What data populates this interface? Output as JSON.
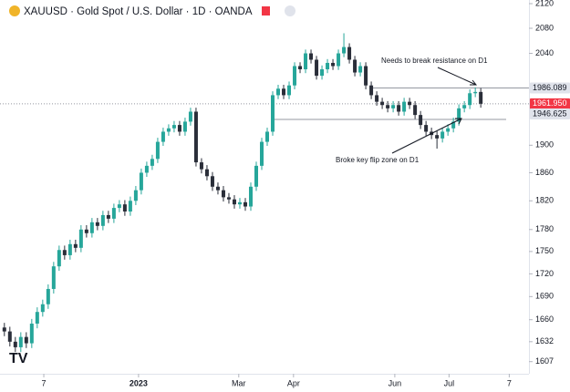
{
  "chart_data": {
    "type": "candlestick",
    "title": "XAUUSD · Gold Spot / U.S. Dollar · 1D · OANDA",
    "up_color": "#26a69a",
    "down_color": "#2a2e39",
    "open": [
      1650,
      1645,
      1632,
      1625,
      1638,
      1630,
      1655,
      1670,
      1680,
      1700,
      1730,
      1752,
      1745,
      1760,
      1755,
      1780,
      1775,
      1790,
      1785,
      1800,
      1795,
      1810,
      1815,
      1805,
      1820,
      1835,
      1860,
      1870,
      1880,
      1905,
      1920,
      1925,
      1930,
      1920,
      1935,
      1950,
      1875,
      1865,
      1855,
      1840,
      1835,
      1825,
      1822,
      1815,
      1818,
      1812,
      1840,
      1870,
      1905,
      1920,
      1975,
      1985,
      1975,
      1990,
      2020,
      2015,
      2040,
      2030,
      2005,
      2015,
      2025,
      2020,
      2040,
      2050,
      2030,
      2010,
      2020,
      1990,
      1975,
      1965,
      1960,
      1955,
      1960,
      1950,
      1965,
      1960,
      1945,
      1930,
      1920,
      1915,
      1910,
      1920,
      1925,
      1935,
      1955,
      1960,
      1978,
      1980
    ],
    "high": [
      1656,
      1651,
      1638,
      1644,
      1644,
      1661,
      1676,
      1686,
      1706,
      1736,
      1758,
      1758,
      1766,
      1766,
      1786,
      1786,
      1796,
      1796,
      1806,
      1806,
      1816,
      1821,
      1821,
      1826,
      1841,
      1866,
      1876,
      1886,
      1911,
      1926,
      1931,
      1936,
      1936,
      1941,
      1956,
      1956,
      1881,
      1871,
      1861,
      1846,
      1841,
      1831,
      1828,
      1824,
      1824,
      1846,
      1876,
      1911,
      1926,
      1981,
      1991,
      1991,
      1996,
      2026,
      2026,
      2046,
      2046,
      2036,
      2021,
      2031,
      2031,
      2046,
      2072,
      2056,
      2036,
      2026,
      2026,
      1996,
      1981,
      1971,
      1966,
      1966,
      1966,
      1971,
      1971,
      1966,
      1951,
      1936,
      1926,
      1921,
      1926,
      1931,
      1941,
      1961,
      1966,
      1984,
      1987,
      1986
    ],
    "low": [
      1639,
      1626,
      1619,
      1619,
      1624,
      1624,
      1649,
      1664,
      1674,
      1694,
      1724,
      1739,
      1739,
      1749,
      1749,
      1769,
      1769,
      1779,
      1779,
      1789,
      1789,
      1804,
      1799,
      1799,
      1814,
      1829,
      1854,
      1864,
      1874,
      1899,
      1914,
      1919,
      1914,
      1914,
      1929,
      1869,
      1859,
      1849,
      1834,
      1829,
      1819,
      1816,
      1809,
      1809,
      1806,
      1806,
      1834,
      1864,
      1899,
      1914,
      1969,
      1969,
      1969,
      1984,
      2009,
      2009,
      2024,
      1999,
      1999,
      2009,
      2014,
      2014,
      2034,
      2024,
      2004,
      2004,
      1984,
      1969,
      1959,
      1954,
      1949,
      1949,
      1944,
      1944,
      1954,
      1939,
      1924,
      1914,
      1909,
      1895,
      1904,
      1914,
      1919,
      1929,
      1949,
      1954,
      1972,
      1956
    ],
    "close": [
      1645,
      1632,
      1625,
      1638,
      1630,
      1655,
      1670,
      1680,
      1700,
      1730,
      1752,
      1745,
      1760,
      1755,
      1780,
      1775,
      1790,
      1785,
      1800,
      1795,
      1810,
      1815,
      1805,
      1820,
      1835,
      1860,
      1870,
      1880,
      1905,
      1920,
      1925,
      1930,
      1920,
      1935,
      1950,
      1875,
      1865,
      1855,
      1840,
      1835,
      1825,
      1822,
      1815,
      1818,
      1812,
      1840,
      1870,
      1905,
      1920,
      1975,
      1985,
      1975,
      1990,
      2020,
      2015,
      2040,
      2030,
      2005,
      2015,
      2025,
      2020,
      2040,
      2050,
      2030,
      2010,
      2020,
      1990,
      1975,
      1965,
      1960,
      1955,
      1960,
      1950,
      1965,
      1960,
      1945,
      1930,
      1920,
      1915,
      1910,
      1920,
      1925,
      1935,
      1955,
      1960,
      1978,
      1980,
      1962
    ],
    "xlim": [
      -0.8,
      95.8
    ],
    "xticks": [
      {
        "value": 7.2,
        "label": "7"
      },
      {
        "value": 24.5,
        "label": "2023"
      },
      {
        "value": 42.8,
        "label": "Mar"
      },
      {
        "value": 52.8,
        "label": "Apr"
      },
      {
        "value": 71.3,
        "label": "Jun"
      },
      {
        "value": 81.2,
        "label": "Jul"
      },
      {
        "value": 92.2,
        "label": "7"
      }
    ],
    "ylim": [
      1592,
      2126
    ],
    "log_scale": true,
    "yticks": [
      2120,
      2080,
      2040,
      1900,
      1860,
      1820,
      1780,
      1750,
      1720,
      1690,
      1660,
      1632,
      1607
    ],
    "resistance": 1986.089,
    "support": 1946.625,
    "last_price": {
      "value": 1961.95,
      "label": "1961.950"
    },
    "annotations": [
      "Needs to break resistance on D1",
      "Broke key flip zone on D1"
    ]
  }
}
